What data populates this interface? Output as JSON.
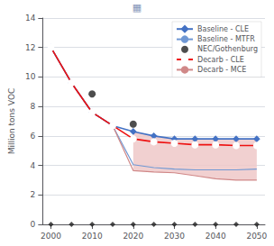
{
  "chart_data": {
    "type": "line",
    "ylabel": "Million tons VOC",
    "annotations": [
      "▦"
    ],
    "x": [
      2000,
      2005,
      2010,
      2015,
      2020,
      2025,
      2030,
      2035,
      2040,
      2045,
      2050
    ],
    "series": [
      {
        "name": "Baseline - CLE",
        "type": "line",
        "color": "#4472C4",
        "marker": "diamond",
        "line_style": "solid",
        "values": [
          12.0,
          9.6,
          7.6,
          6.7,
          6.3,
          6.0,
          5.8,
          5.8,
          5.8,
          5.8,
          5.8
        ]
      },
      {
        "name": "Baseline - MTFR",
        "type": "line",
        "color": "#7098D4",
        "marker": "none",
        "line_style": "solid",
        "values": [
          12.0,
          9.6,
          7.6,
          6.7,
          4.05,
          3.85,
          3.75,
          3.7,
          3.7,
          3.7,
          3.75
        ]
      },
      {
        "name": "NEC/Gothenburg",
        "type": "scatter",
        "color": "#202020",
        "marker": "circle",
        "x": [
          2010,
          2020
        ],
        "values": [
          8.85,
          6.8
        ]
      },
      {
        "name": "Decarb - CLE",
        "type": "line",
        "color": "#EE1111",
        "marker": "open_circle",
        "line_style": "solid",
        "values": [
          12.0,
          9.6,
          7.6,
          6.7,
          5.8,
          5.6,
          5.5,
          5.4,
          5.4,
          5.35,
          5.35
        ]
      },
      {
        "name": "Decarb - MCE",
        "type": "line",
        "color": "#D08888",
        "marker": "none",
        "line_style": "solid",
        "values": [
          12.0,
          9.6,
          7.6,
          6.7,
          3.65,
          3.55,
          3.5,
          3.3,
          3.1,
          3.0,
          3.0
        ]
      },
      {
        "type": "scatter",
        "color": "#202020",
        "marker": "diamond",
        "x": [
          2000,
          2005,
          2010,
          2015,
          2020,
          2025,
          2030,
          2035,
          2040,
          2045,
          2050
        ],
        "values": [
          0.0,
          0.0,
          0.0,
          0.0,
          0.0,
          0.0,
          0.0,
          0.0,
          0.0,
          0.0,
          0.0
        ]
      },
      {
        "type": "band",
        "color": "#EEC8C8",
        "x": [
          2020,
          2025,
          2030,
          2035,
          2040,
          2045,
          2050
        ],
        "upper": [
          6.3,
          6.0,
          5.8,
          5.8,
          5.8,
          5.8,
          5.8
        ],
        "lower": [
          3.65,
          3.55,
          3.5,
          3.3,
          3.1,
          3.0,
          3.0
        ]
      }
    ],
    "xlim": [
      1998,
      2052
    ],
    "xticks": [
      2000,
      2010,
      2020,
      2030,
      2040,
      2050
    ],
    "ylim": [
      0,
      14
    ],
    "yticks": [
      0,
      2,
      4,
      6,
      8,
      10,
      12,
      14
    ],
    "grid": true,
    "legend": "upper right"
  }
}
